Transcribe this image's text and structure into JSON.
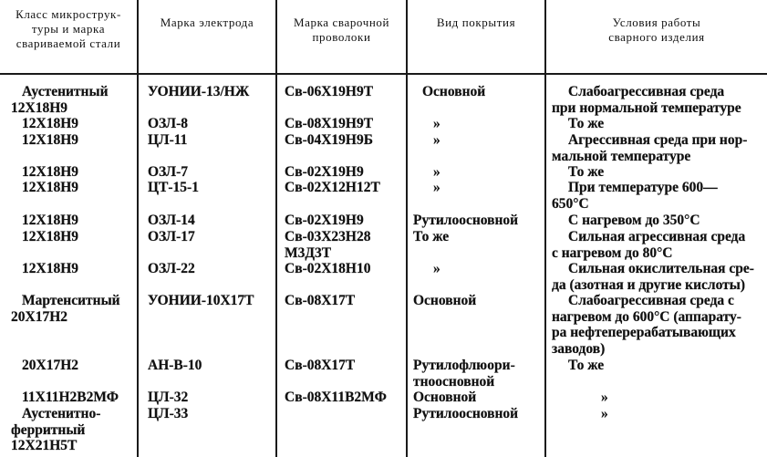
{
  "headers": [
    "Класс микрострук-\nтуры и марка\nсвариваемой стали",
    "Марка электрода",
    "Марка сварочной\nпроволоки",
    "Вид покрытия",
    "Условия работы\nсварного изделия"
  ],
  "rows": [
    {
      "steel": "Аустенитный\n12Х18Н9",
      "electrode": "УОНИИ-13/НЖ",
      "wire": "Св-06Х19Н9Т",
      "coating": "Основной",
      "conditions": "Слабоагрессивная среда\nпри нормальной температуре"
    },
    {
      "steel": "12Х18Н9",
      "electrode": "ОЗЛ-8",
      "wire": "Св-08Х19Н9Т",
      "coating": "»",
      "conditions": "То же"
    },
    {
      "steel": "12Х18Н9",
      "electrode": "ЦЛ-11",
      "wire": "Св-04Х19Н9Б",
      "coating": "»",
      "conditions": "Агрессивная среда при нор-\nмальной температуре"
    },
    {
      "steel": "12Х18Н9",
      "electrode": "ОЗЛ-7",
      "wire": "Св-02Х19Н9",
      "coating": "»",
      "conditions": "То же"
    },
    {
      "steel": "12Х18Н9",
      "electrode": "ЦТ-15-1",
      "wire": "Св-02Х12Н12Т",
      "coating": "»",
      "conditions": "При температуре 600—\n650°С"
    },
    {
      "steel": "12Х18Н9",
      "electrode": "ОЗЛ-14",
      "wire": "Св-02Х19Н9",
      "coating": "Рутилоосновной",
      "conditions": "С нагревом до 350°С"
    },
    {
      "steel": "12Х18Н9",
      "electrode": "ОЗЛ-17",
      "wire": "Св-03Х23Н28\nМ3Д3Т",
      "coating": "То же",
      "conditions": "Сильная агрессивная среда\nс нагревом до 80°С"
    },
    {
      "steel": "12Х18Н9",
      "electrode": "ОЗЛ-22",
      "wire": "Св-02Х18Н10",
      "coating": "»",
      "conditions": "Сильная окислительная сре-\nда (азотная и другие кислоты)"
    },
    {
      "steel": "Мартенситный\n20Х17Н2",
      "electrode": "УОНИИ-10Х17Т",
      "wire": "Св-08Х17Т",
      "coating": "Основной",
      "conditions": "Слабоагрессивная среда с\nнагревом до 600°С (аппарату-\nра нефтеперерабатывающих\nзаводов)"
    },
    {
      "steel": "20Х17Н2",
      "electrode": "АН-В-10",
      "wire": "Св-08Х17Т",
      "coating": "Рутилофлюори-\nтноосновной",
      "conditions": "То же"
    },
    {
      "steel": "11Х11Н2В2МФ",
      "electrode": "ЦЛ-32",
      "wire": "Св-08Х11В2МФ",
      "coating": "Основной",
      "conditions": "»"
    },
    {
      "steel": "Аустенитно-\nферритный\n12Х21Н5Т",
      "electrode": "ЦЛ-33",
      "wire": "",
      "coating": "Рутилоосновной",
      "conditions": "»"
    }
  ]
}
